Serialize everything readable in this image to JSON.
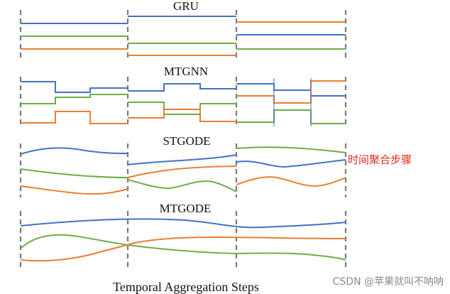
{
  "diagram": {
    "panels": [
      {
        "title": "GRU",
        "style": "constant-per-segment"
      },
      {
        "title": "MTGNN",
        "style": "piecewise-steps"
      },
      {
        "title": "STGODE",
        "style": "smooth-per-segment"
      },
      {
        "title": "MTGODE",
        "style": "continuous"
      }
    ],
    "side_label": "时间聚合步骤",
    "x_axis_label": "Temporal Aggregation Steps",
    "series_colors": {
      "blue": "#4472c4",
      "orange": "#ed7d31",
      "green": "#70ad47"
    },
    "divider_color": "#7a7a7a",
    "side_label_color": "#e2281f"
  },
  "watermark": "CSDN @苹果就叫不呐呐"
}
